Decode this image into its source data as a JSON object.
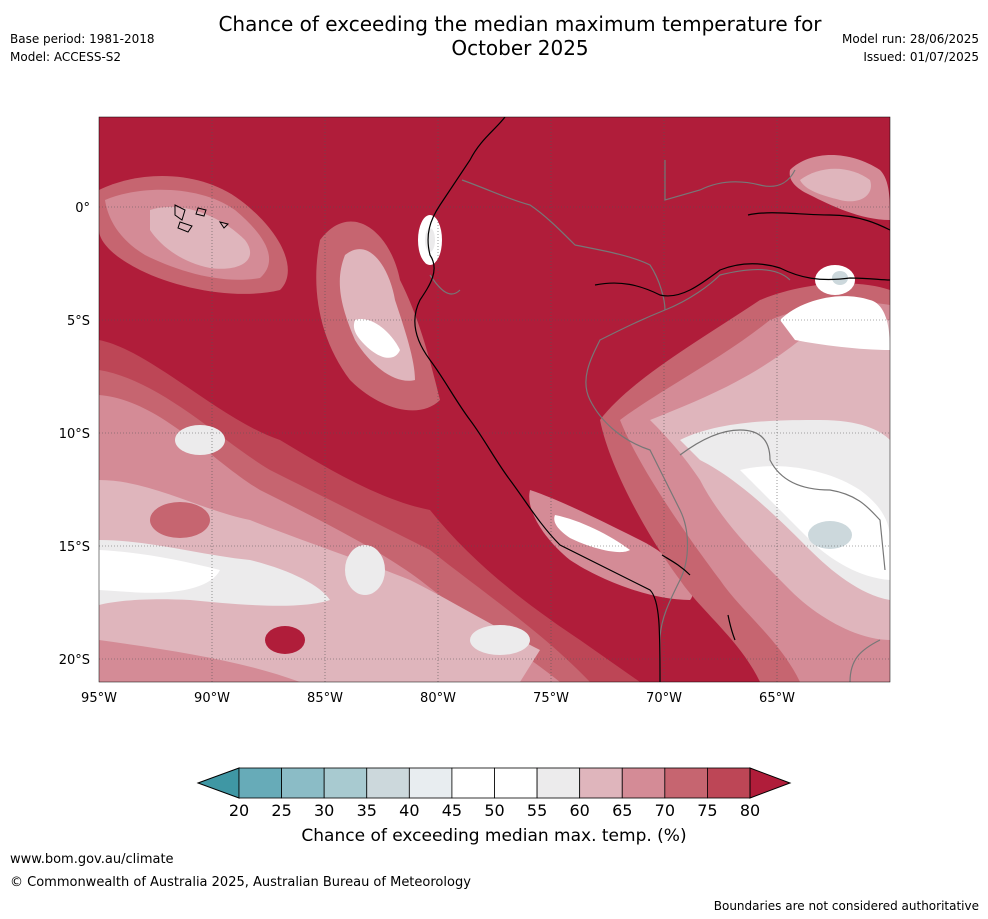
{
  "title_line1": "Chance of exceeding the median maximum temperature for",
  "title_line2": "October 2025",
  "meta_left": {
    "base_period": "Base period: 1981-2018",
    "model": "Model: ACCESS-S2"
  },
  "meta_right": {
    "model_run": "Model run: 28/06/2025",
    "issued": "Issued: 01/07/2025"
  },
  "axes": {
    "lat_labels": [
      "0°",
      "5°S",
      "10°S",
      "15°S",
      "20°S"
    ],
    "lon_labels": [
      "95°W",
      "90°W",
      "85°W",
      "80°W",
      "75°W",
      "70°W",
      "65°W"
    ]
  },
  "colorbar": {
    "ticks": [
      "20",
      "25",
      "30",
      "35",
      "40",
      "45",
      "50",
      "55",
      "60",
      "65",
      "70",
      "75",
      "80"
    ],
    "label": "Chance of exceeding median max. temp. (%)",
    "colors": [
      "#3f97a4",
      "#67abb8",
      "#8bbcc6",
      "#a8cad0",
      "#ccd8dc",
      "#e8edf0",
      "#ffffff",
      "#ffffff",
      "#ecebec",
      "#dfb5bc",
      "#d48b96",
      "#c66570",
      "#bd4656",
      "#b01d3a"
    ]
  },
  "map_colors": {
    "base": "#b01d3a",
    "c75": "#bd4656",
    "c70": "#c66570",
    "c65": "#d48b96",
    "c60": "#dfb5bc",
    "c55": "#ecebec",
    "c50": "#ffffff",
    "c40": "#ccd8dc"
  },
  "footer": {
    "url": "www.bom.gov.au/climate",
    "copyright": "© Commonwealth of Australia 2025, Australian Bureau of Meteorology",
    "note": "Boundaries are not considered authoritative"
  }
}
